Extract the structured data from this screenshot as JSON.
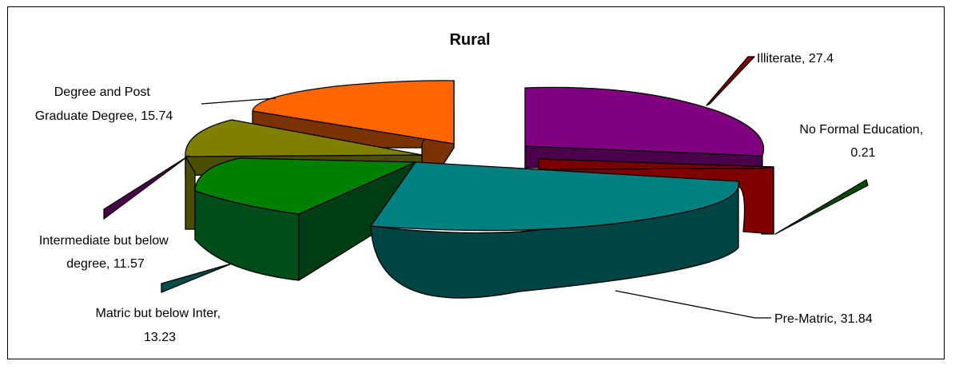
{
  "chart_data": {
    "type": "pie",
    "title": "Rural",
    "exploded": true,
    "three_d": true,
    "slices": [
      {
        "label": "Illiterate, 27.4",
        "category": "Illiterate",
        "value": 27.4,
        "color": "#800080"
      },
      {
        "label": "No Formal Education, 0.21",
        "category": "No Formal Education",
        "value": 0.21,
        "color": "#7a0000"
      },
      {
        "label": "Pre-Matric, 31.84",
        "category": "Pre-Matric",
        "value": 31.84,
        "color": "#008080"
      },
      {
        "label": "Matric but below Inter, 13.23",
        "category": "Matric but below Inter",
        "value": 13.23,
        "color": "#008000"
      },
      {
        "label": "Intermediate but below degree, 11.57",
        "category": "Intermediate but below degree",
        "value": 11.57,
        "color": "#808000"
      },
      {
        "label": "Degree and Post Graduate Degree, 15.74",
        "category": "Degree and Post Graduate Degree",
        "value": 15.74,
        "color": "#ff6600"
      }
    ],
    "label_lines": [
      [
        "Illiterate, 27.4"
      ],
      [
        "No Formal Education,",
        "0.21"
      ],
      [
        "Pre-Matric, 31.84"
      ],
      [
        "Matric but below Inter,",
        "13.23"
      ],
      [
        "Intermediate but below",
        "degree, 11.57"
      ],
      [
        "Degree and Post",
        "Graduate Degree, 15.74"
      ]
    ]
  }
}
